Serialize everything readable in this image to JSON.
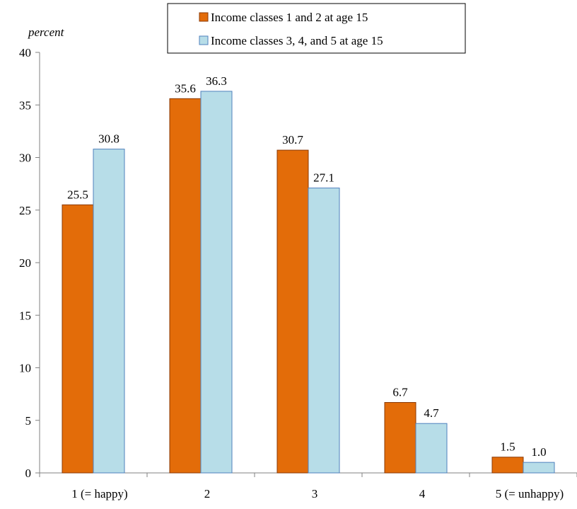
{
  "chart_data": {
    "type": "bar",
    "ylabel": "percent",
    "xlabel": "",
    "ylim": [
      0,
      40
    ],
    "yticks": [
      0,
      5,
      10,
      15,
      20,
      25,
      30,
      35,
      40
    ],
    "categories": [
      "1 (= happy)",
      "2",
      "3",
      "4",
      "5 (= unhappy)"
    ],
    "series": [
      {
        "name": "Income classes 1 and 2 at age 15",
        "color": "#E36C09",
        "edge": "#8B3A06",
        "values": [
          25.5,
          35.6,
          30.7,
          6.7,
          1.5
        ],
        "labels": [
          "25.5",
          "35.6",
          "30.7",
          "6.7",
          "1.5"
        ]
      },
      {
        "name": "Income classes 3, 4, and 5 at age 15",
        "color": "#B7DDE8",
        "edge": "#4F81BD",
        "values": [
          30.8,
          36.3,
          27.1,
          4.7,
          1.0
        ],
        "labels": [
          "30.8",
          "36.3",
          "27.1",
          "4.7",
          "1.0"
        ]
      }
    ],
    "legend_position": "top-right",
    "grid": false
  }
}
